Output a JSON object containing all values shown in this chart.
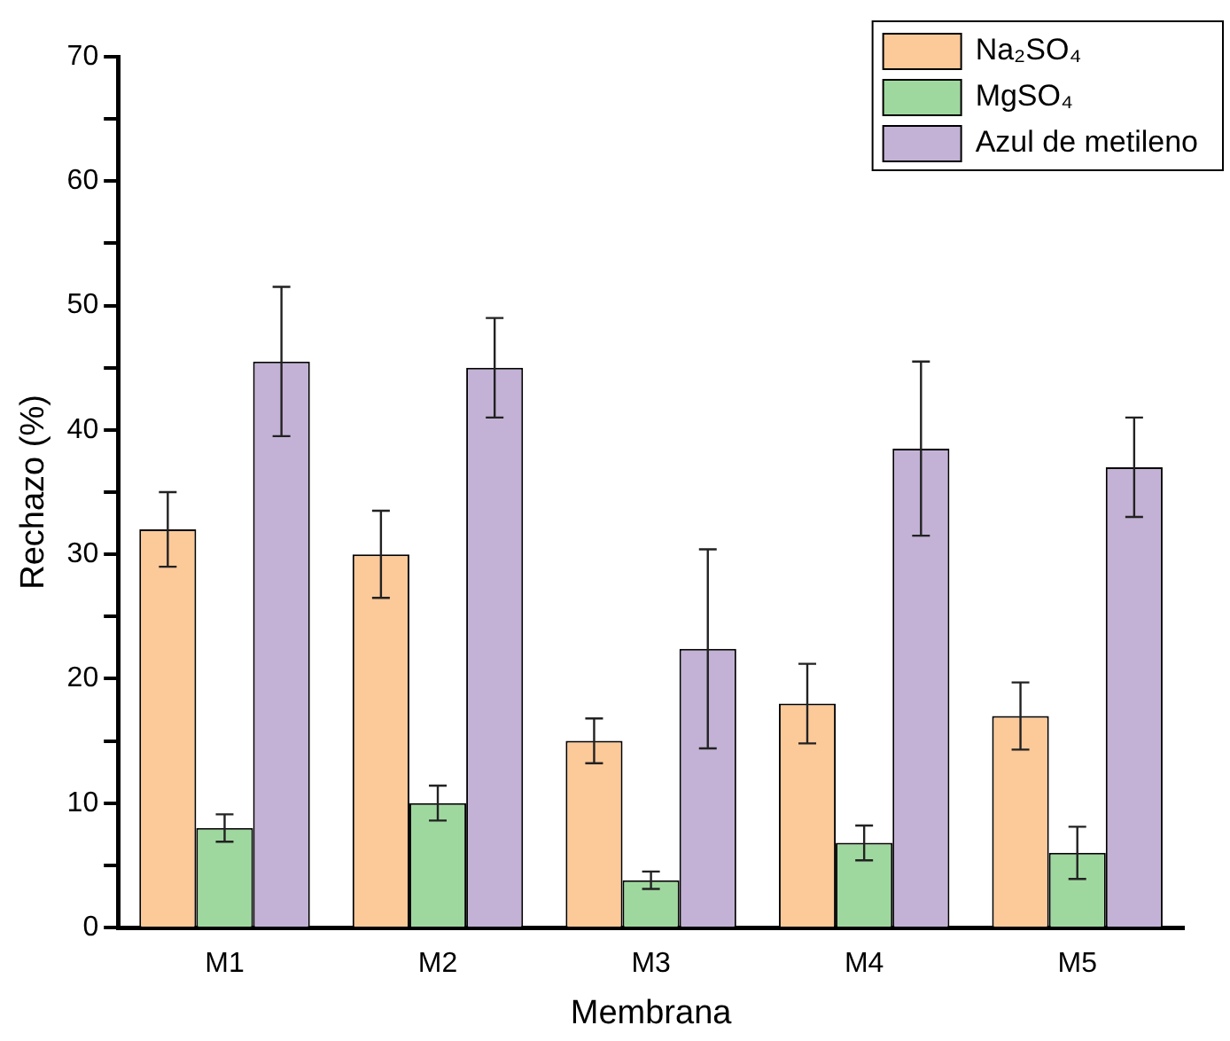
{
  "chart_data": {
    "type": "bar",
    "xlabel": "Membrana",
    "ylabel": "Rechazo (%)",
    "categories": [
      "M1",
      "M2",
      "M3",
      "M4",
      "M5"
    ],
    "series": [
      {
        "name": "Na₂SO₄",
        "color": "#fcc999",
        "values": [
          32,
          30,
          15,
          18,
          17
        ],
        "errors": [
          3,
          3.5,
          1.8,
          3.2,
          2.7
        ]
      },
      {
        "name": "MgSO₄",
        "color": "#9fd89f",
        "values": [
          8,
          10,
          3.8,
          6.8,
          6
        ],
        "errors": [
          1.1,
          1.4,
          0.7,
          1.4,
          2.1
        ]
      },
      {
        "name": "Azul de metileno",
        "color": "#c3b2d6",
        "values": [
          45.5,
          45,
          22.4,
          38.5,
          37
        ],
        "errors": [
          6,
          4,
          8,
          7,
          4
        ]
      }
    ],
    "ylim": [
      0,
      70
    ],
    "yticks": [
      0,
      {
        "value": 5,
        "label": null
      },
      10,
      {
        "value": 15,
        "label": null
      },
      20,
      {
        "value": 25,
        "label": null
      },
      30,
      {
        "value": 35,
        "label": null
      },
      40,
      {
        "value": 45,
        "label": null
      },
      50,
      {
        "value": 55,
        "label": null
      },
      60,
      {
        "value": 65,
        "label": null
      },
      70
    ],
    "grid": false,
    "legend": "top right"
  }
}
